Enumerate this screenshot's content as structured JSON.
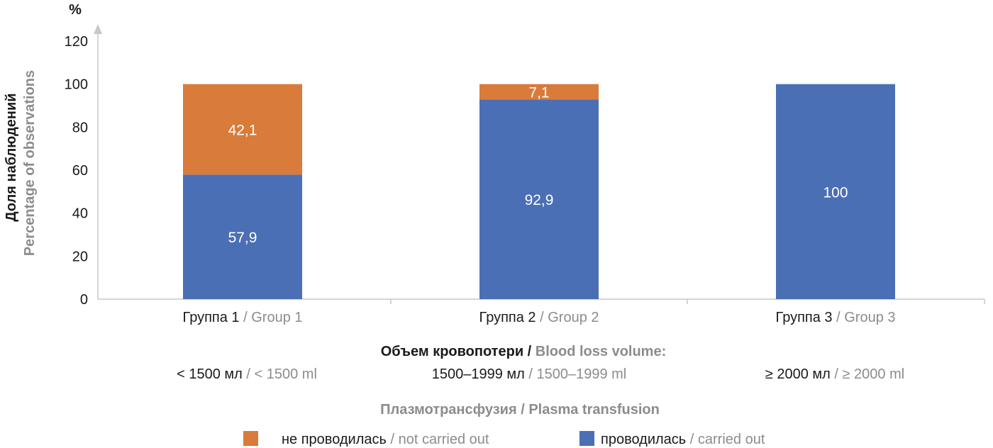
{
  "chart_data": {
    "type": "bar",
    "stacked": true,
    "unit_label": "%",
    "ylabel": {
      "ru": "Доля наблюдений",
      "en": "Percentage of observations"
    },
    "ylim": [
      0,
      120
    ],
    "yticks": [
      "0",
      "20",
      "40",
      "60",
      "80",
      "100",
      "120"
    ],
    "categories": [
      {
        "ru": "Группа 1",
        "en": "Group 1",
        "range_ru": "< 1500 мл",
        "range_en": "< 1500 ml"
      },
      {
        "ru": "Группа 2",
        "en": "Group 2",
        "range_ru": "1500–1999 мл",
        "range_en": "1500–1999 ml"
      },
      {
        "ru": "Группа 3",
        "en": "Group 3",
        "range_ru": "≥ 2000 мл",
        "range_en": "≥ 2000 ml"
      }
    ],
    "series": [
      {
        "name_ru": "проводилась",
        "name_en": "carried out",
        "color": "#4a6fb5",
        "values": [
          57.9,
          92.9,
          100
        ],
        "labels": [
          "57,9",
          "92,9",
          "100"
        ]
      },
      {
        "name_ru": "не проводилась",
        "name_en": "not carried out",
        "color": "#d97b3b",
        "values": [
          42.1,
          7.1,
          0
        ],
        "labels": [
          "42,1",
          "7,1",
          ""
        ]
      }
    ],
    "xtitle": {
      "ru": "Объем кровопотери",
      "en": "Blood loss volume:"
    },
    "legend_title": {
      "ru": "Плазмотрансфузия",
      "en": "Plasma transfusion"
    },
    "legend": [
      {
        "ru": "не проводилась",
        "en": "not carried out",
        "color": "#d97b3b"
      },
      {
        "ru": "проводилась",
        "en": "carried out",
        "color": "#4a6fb5"
      }
    ],
    "grid": false,
    "legend_position": "bottom",
    "colors": {
      "axis": "#c8c8c8",
      "ru_text": "#1a1a1a",
      "en_text": "#8c8c8c"
    }
  }
}
